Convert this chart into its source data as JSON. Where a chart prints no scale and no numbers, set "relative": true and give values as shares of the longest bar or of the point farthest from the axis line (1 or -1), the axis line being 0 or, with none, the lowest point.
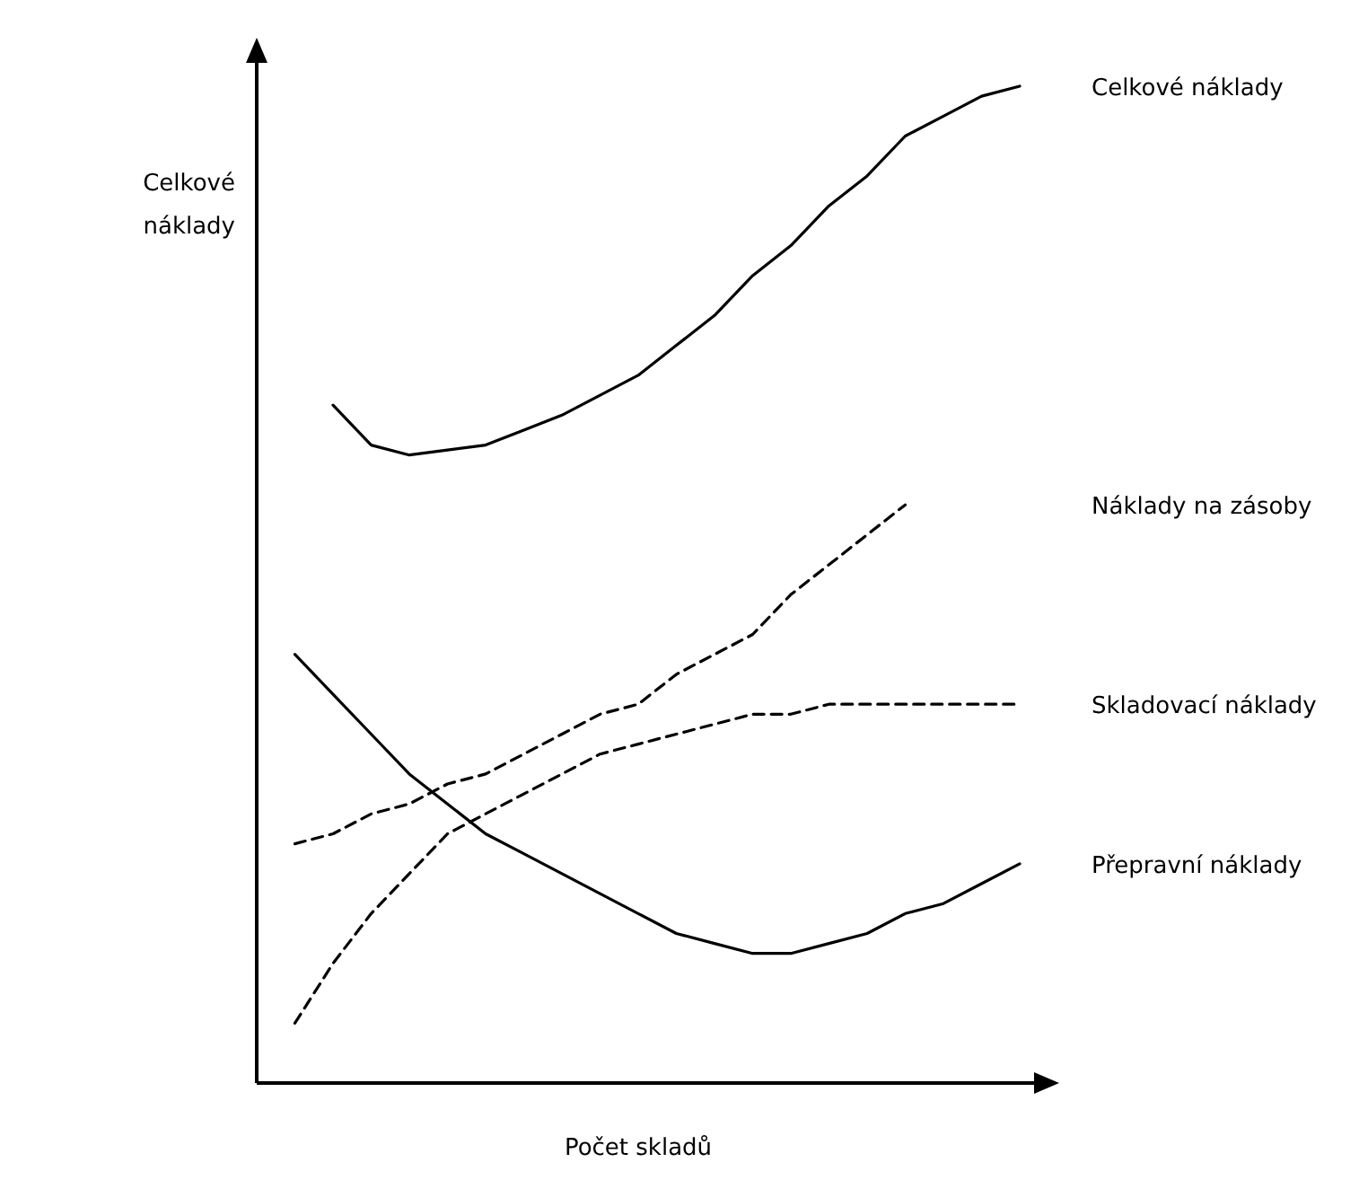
{
  "chart_data": {
    "type": "line",
    "relative": true,
    "ylabel": "Celkové náklady",
    "xlabel": "Počet skladů",
    "categories": [
      null,
      null,
      null,
      null,
      null,
      null,
      null,
      null,
      null,
      null,
      null,
      null,
      null,
      null,
      null,
      null,
      null,
      null,
      null,
      null,
      null
    ],
    "grid": false,
    "series": [
      {
        "name": "Celkové náklady",
        "color": "#000000",
        "line_style": "solid",
        "values": [
          null,
          null,
          0.68,
          0.64,
          0.63,
          0.635,
          0.64,
          0.655,
          0.67,
          0.69,
          0.71,
          0.74,
          0.77,
          0.81,
          0.84,
          0.88,
          0.91,
          0.95,
          0.97,
          0.99,
          1.0
        ]
      },
      {
        "name": "Náklady na zásoby",
        "color": "#000000",
        "line_style": "dashed",
        "values": [
          null,
          0.24,
          0.25,
          0.27,
          0.28,
          0.3,
          0.31,
          0.33,
          0.35,
          0.37,
          0.38,
          0.41,
          0.43,
          0.45,
          0.49,
          0.52,
          0.55,
          0.58,
          null,
          null,
          null
        ]
      },
      {
        "name": "Skladovací náklady",
        "color": "#000000",
        "line_style": "dashed",
        "values": [
          null,
          0.06,
          0.12,
          0.17,
          0.21,
          0.25,
          0.27,
          0.29,
          0.31,
          0.33,
          0.34,
          0.35,
          0.36,
          0.37,
          0.37,
          0.38,
          0.38,
          0.38,
          0.38,
          0.38,
          0.38
        ]
      },
      {
        "name": "Přepravní náklady",
        "color": "#000000",
        "line_style": "solid",
        "values": [
          null,
          0.43,
          0.39,
          0.35,
          0.31,
          0.28,
          0.25,
          0.23,
          0.21,
          0.19,
          0.17,
          0.15,
          0.14,
          0.13,
          0.13,
          0.14,
          0.15,
          0.17,
          0.18,
          0.2,
          0.22
        ]
      }
    ]
  }
}
